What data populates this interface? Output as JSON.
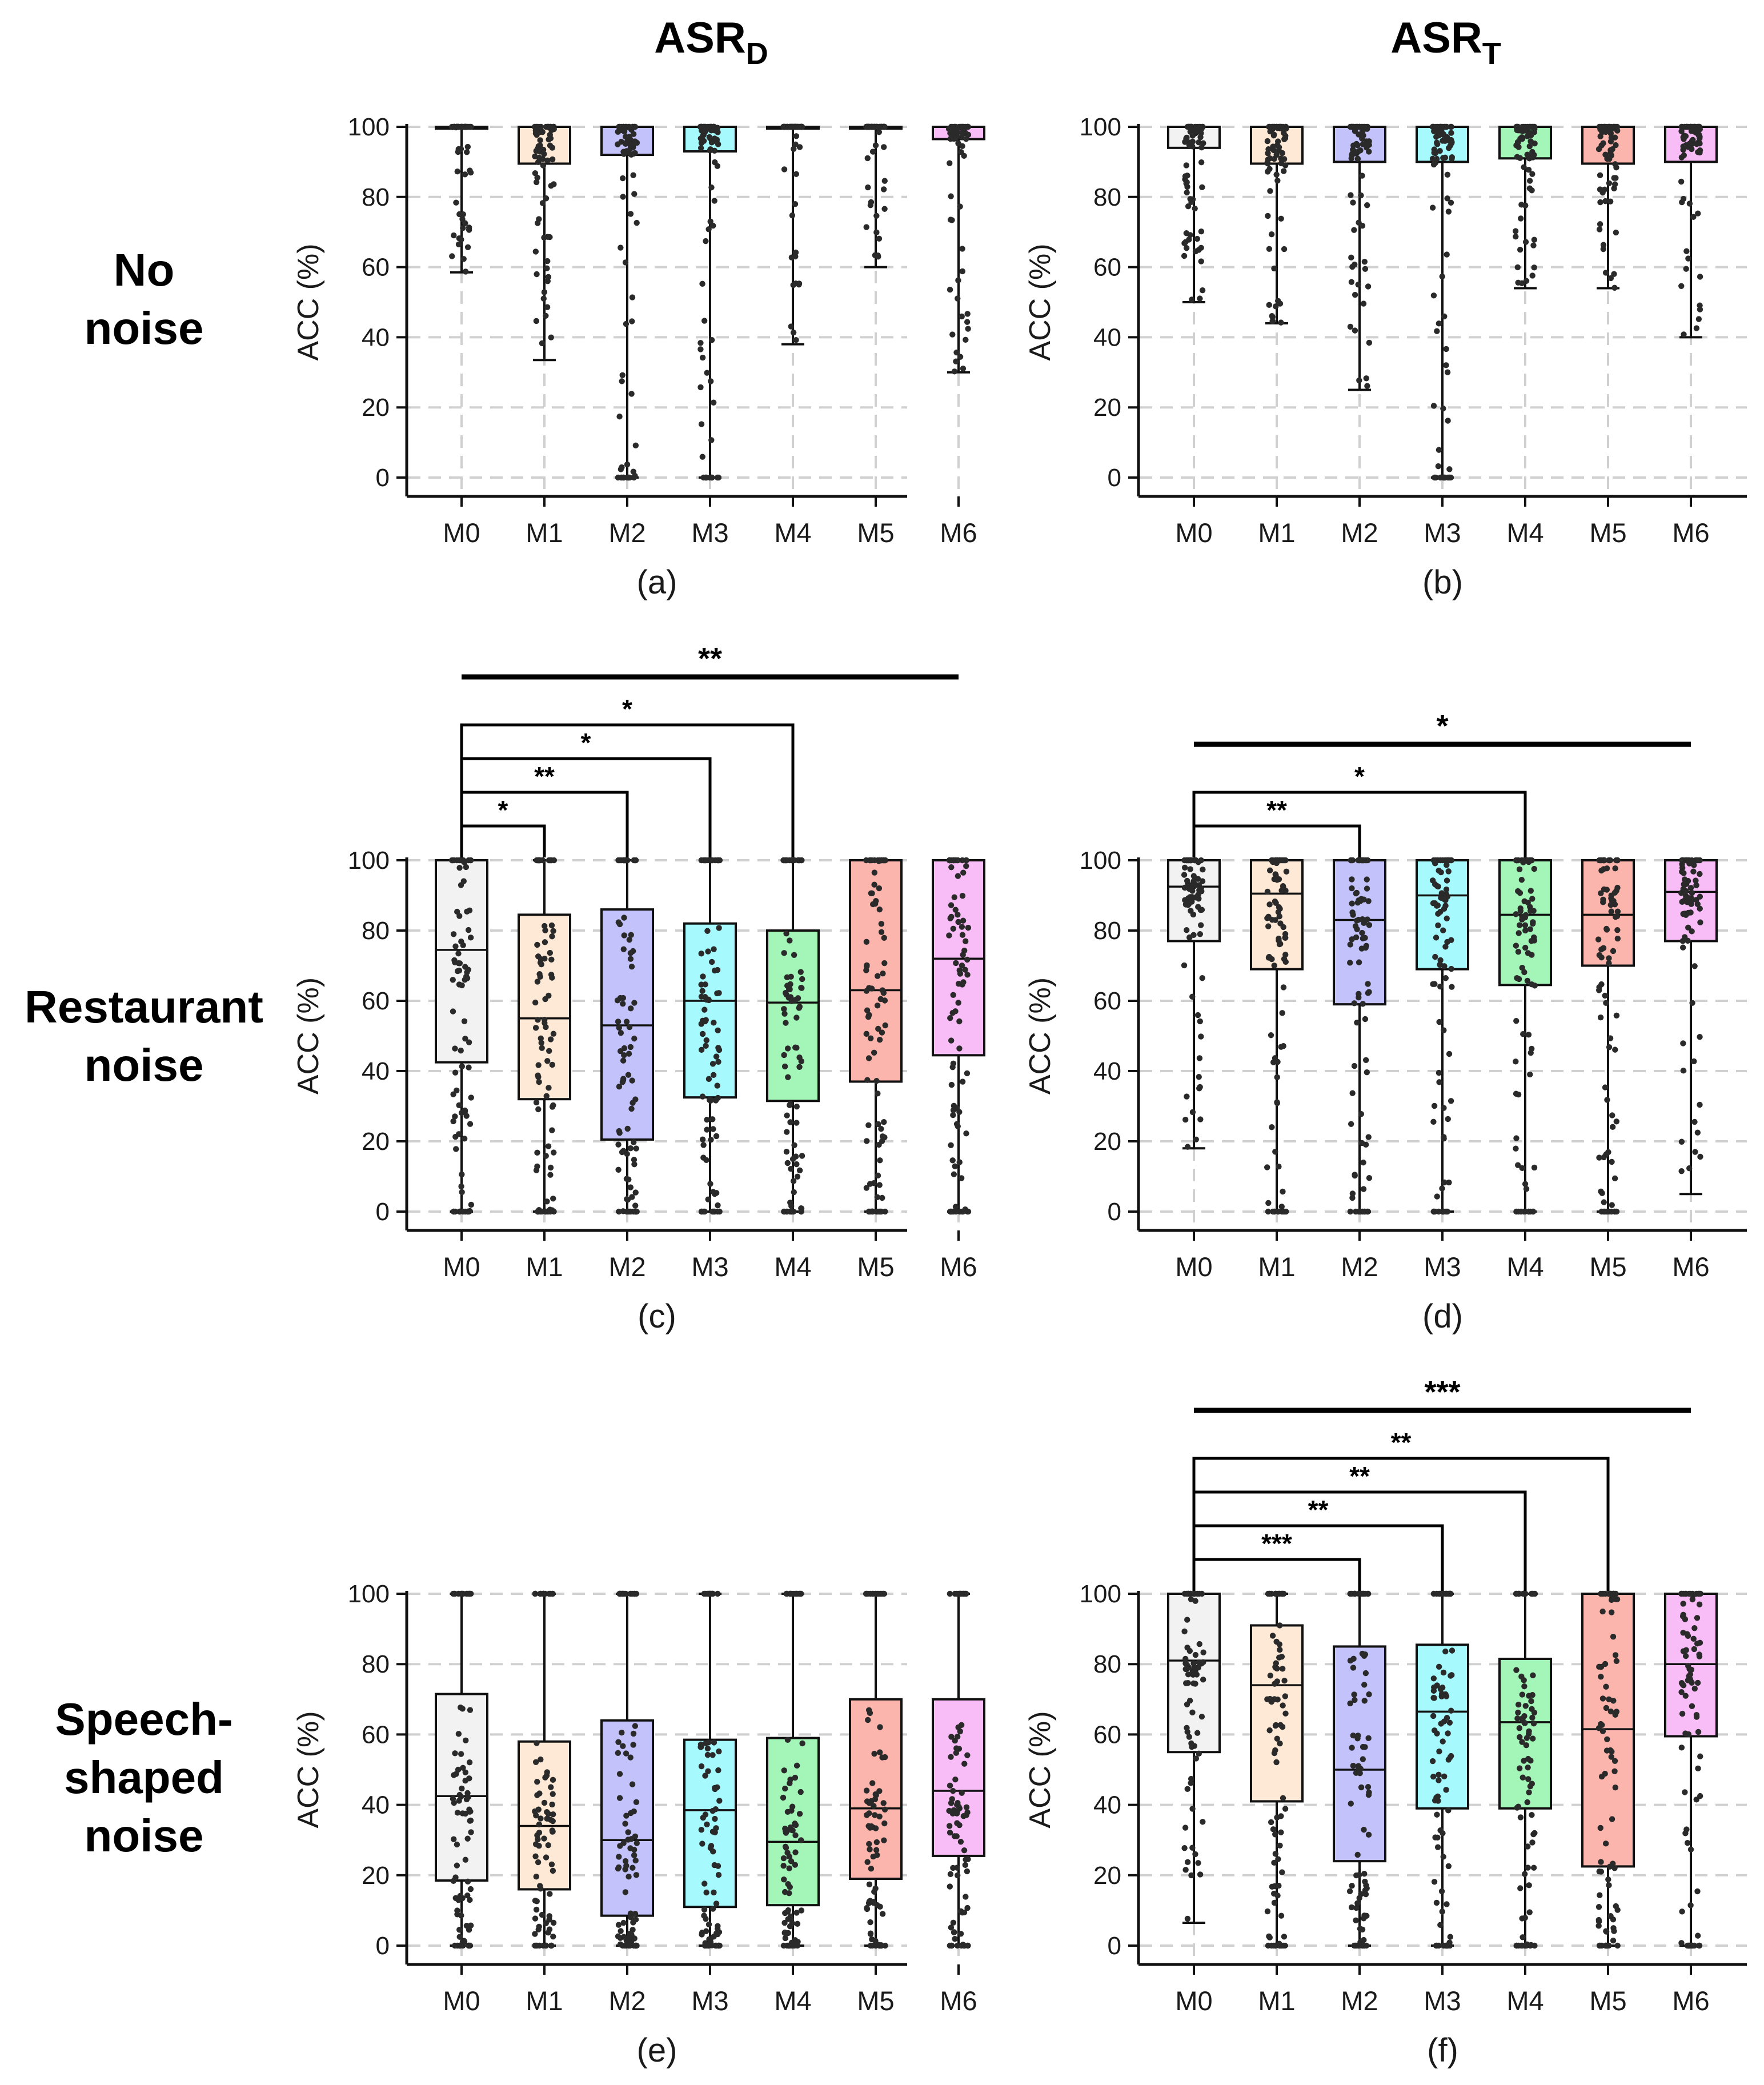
{
  "figure": {
    "columns": [
      {
        "main": "ASR",
        "sub": "D"
      },
      {
        "main": "ASR",
        "sub": "T"
      }
    ],
    "rows": [
      {
        "label_lines": [
          "No",
          "noise"
        ]
      },
      {
        "label_lines": [
          "Restaurant",
          "noise"
        ]
      },
      {
        "label_lines": [
          "Speech-",
          "shaped",
          "noise"
        ]
      }
    ],
    "colors": {
      "M0": "#f2f2f2",
      "M1": "#fde9d6",
      "M2": "#c3c2fa",
      "M3": "#a6fafd",
      "M4": "#a3f5b8",
      "M5": "#fbb5ad",
      "M6": "#f8bdf6",
      "points": "#2a2a2a",
      "axis": "#111111",
      "grid": "#d0d0d0"
    }
  },
  "chart_data": [
    {
      "type": "box",
      "panel_label": "(a)",
      "ylabel": "ACC (%)",
      "ylim": [
        0,
        100
      ],
      "yticks": [
        0,
        20,
        40,
        60,
        80,
        100
      ],
      "grid": true,
      "categories": [
        "M0",
        "M1",
        "M2",
        "M3",
        "M4",
        "M5",
        "M6"
      ],
      "boxes": [
        {
          "name": "M0",
          "min": 58.5,
          "q1": 100,
          "median": 100,
          "q3": 100,
          "max": 100
        },
        {
          "name": "M1",
          "min": 33.5,
          "q1": 89.5,
          "median": 100,
          "q3": 100,
          "max": 100
        },
        {
          "name": "M2",
          "min": 0,
          "q1": 92,
          "median": 100,
          "q3": 100,
          "max": 100
        },
        {
          "name": "M3",
          "min": 0,
          "q1": 93,
          "median": 100,
          "q3": 100,
          "max": 100
        },
        {
          "name": "M4",
          "min": 38,
          "q1": 100,
          "median": 100,
          "q3": 100,
          "max": 100
        },
        {
          "name": "M5",
          "min": 60,
          "q1": 100,
          "median": 100,
          "q3": 100,
          "max": 100
        },
        {
          "name": "M6",
          "min": 30,
          "q1": 96.5,
          "median": 100,
          "q3": 100,
          "max": 100
        }
      ],
      "significance": []
    },
    {
      "type": "box",
      "panel_label": "(b)",
      "ylabel": "ACC (%)",
      "ylim": [
        0,
        100
      ],
      "yticks": [
        0,
        20,
        40,
        60,
        80,
        100
      ],
      "grid": true,
      "categories": [
        "M0",
        "M1",
        "M2",
        "M3",
        "M4",
        "M5",
        "M6"
      ],
      "boxes": [
        {
          "name": "M0",
          "min": 50,
          "q1": 94,
          "median": 100,
          "q3": 100,
          "max": 100
        },
        {
          "name": "M1",
          "min": 44,
          "q1": 89.5,
          "median": 100,
          "q3": 100,
          "max": 100
        },
        {
          "name": "M2",
          "min": 25,
          "q1": 90,
          "median": 100,
          "q3": 100,
          "max": 100
        },
        {
          "name": "M3",
          "min": 0,
          "q1": 90,
          "median": 100,
          "q3": 100,
          "max": 100
        },
        {
          "name": "M4",
          "min": 54,
          "q1": 91,
          "median": 100,
          "q3": 100,
          "max": 100
        },
        {
          "name": "M5",
          "min": 54,
          "q1": 89.5,
          "median": 100,
          "q3": 100,
          "max": 100
        },
        {
          "name": "M6",
          "min": 40,
          "q1": 90,
          "median": 100,
          "q3": 100,
          "max": 100
        }
      ],
      "significance": []
    },
    {
      "type": "box",
      "panel_label": "(c)",
      "ylabel": "ACC (%)",
      "ylim": [
        0,
        100
      ],
      "yticks": [
        0,
        20,
        40,
        60,
        80,
        100
      ],
      "grid": true,
      "categories": [
        "M0",
        "M1",
        "M2",
        "M3",
        "M4",
        "M5",
        "M6"
      ],
      "boxes": [
        {
          "name": "M0",
          "min": 0,
          "q1": 42.5,
          "median": 74.5,
          "q3": 100,
          "max": 100
        },
        {
          "name": "M1",
          "min": 0,
          "q1": 32,
          "median": 55,
          "q3": 84.5,
          "max": 100
        },
        {
          "name": "M2",
          "min": 0,
          "q1": 20.5,
          "median": 53,
          "q3": 86,
          "max": 100
        },
        {
          "name": "M3",
          "min": 0,
          "q1": 32.5,
          "median": 60,
          "q3": 82,
          "max": 100
        },
        {
          "name": "M4",
          "min": 0,
          "q1": 31.5,
          "median": 59.5,
          "q3": 80,
          "max": 100
        },
        {
          "name": "M5",
          "min": 0,
          "q1": 37,
          "median": 63,
          "q3": 100,
          "max": 100
        },
        {
          "name": "M6",
          "min": 0,
          "q1": 44.5,
          "median": 72,
          "q3": 100,
          "max": 100
        }
      ],
      "significance": [
        {
          "from": "M0",
          "to": "M1",
          "label": "*"
        },
        {
          "from": "M0",
          "to": "M2",
          "label": "**"
        },
        {
          "from": "M0",
          "to": "M3",
          "label": "*"
        },
        {
          "from": "M0",
          "to": "M4",
          "label": "*"
        },
        {
          "from": "M0",
          "to": "M6",
          "label": "**",
          "overall": true
        }
      ]
    },
    {
      "type": "box",
      "panel_label": "(d)",
      "ylabel": "ACC (%)",
      "ylim": [
        0,
        100
      ],
      "yticks": [
        0,
        20,
        40,
        60,
        80,
        100
      ],
      "grid": true,
      "categories": [
        "M0",
        "M1",
        "M2",
        "M3",
        "M4",
        "M5",
        "M6"
      ],
      "boxes": [
        {
          "name": "M0",
          "min": 18,
          "q1": 77,
          "median": 92.5,
          "q3": 100,
          "max": 100
        },
        {
          "name": "M1",
          "min": 0,
          "q1": 69,
          "median": 90.5,
          "q3": 100,
          "max": 100
        },
        {
          "name": "M2",
          "min": 0,
          "q1": 59,
          "median": 83,
          "q3": 100,
          "max": 100
        },
        {
          "name": "M3",
          "min": 0,
          "q1": 69,
          "median": 90,
          "q3": 100,
          "max": 100
        },
        {
          "name": "M4",
          "min": 0,
          "q1": 64.5,
          "median": 84.5,
          "q3": 100,
          "max": 100
        },
        {
          "name": "M5",
          "min": 0,
          "q1": 70,
          "median": 84.5,
          "q3": 100,
          "max": 100
        },
        {
          "name": "M6",
          "min": 5,
          "q1": 77,
          "median": 91,
          "q3": 100,
          "max": 100
        }
      ],
      "significance": [
        {
          "from": "M0",
          "to": "M2",
          "label": "**"
        },
        {
          "from": "M0",
          "to": "M4",
          "label": "*"
        },
        {
          "from": "M0",
          "to": "M6",
          "label": "*",
          "overall": true
        }
      ]
    },
    {
      "type": "box",
      "panel_label": "(e)",
      "ylabel": "ACC (%)",
      "ylim": [
        0,
        100
      ],
      "yticks": [
        0,
        20,
        40,
        60,
        80,
        100
      ],
      "grid": true,
      "categories": [
        "M0",
        "M1",
        "M2",
        "M3",
        "M4",
        "M5",
        "M6"
      ],
      "boxes": [
        {
          "name": "M0",
          "min": 0,
          "q1": 18.5,
          "median": 42.5,
          "q3": 71.5,
          "max": 100
        },
        {
          "name": "M1",
          "min": 0,
          "q1": 16,
          "median": 34,
          "q3": 58,
          "max": 100
        },
        {
          "name": "M2",
          "min": 0,
          "q1": 8.5,
          "median": 30,
          "q3": 64,
          "max": 100
        },
        {
          "name": "M3",
          "min": 0,
          "q1": 11,
          "median": 38.5,
          "q3": 58.5,
          "max": 100
        },
        {
          "name": "M4",
          "min": 0,
          "q1": 11.5,
          "median": 29.5,
          "q3": 59,
          "max": 100
        },
        {
          "name": "M5",
          "min": 0,
          "q1": 19,
          "median": 39,
          "q3": 70,
          "max": 100
        },
        {
          "name": "M6",
          "min": 0,
          "q1": 25.5,
          "median": 44,
          "q3": 70,
          "max": 100
        }
      ],
      "significance": []
    },
    {
      "type": "box",
      "panel_label": "(f)",
      "ylabel": "ACC (%)",
      "ylim": [
        0,
        100
      ],
      "yticks": [
        0,
        20,
        40,
        60,
        80,
        100
      ],
      "grid": true,
      "categories": [
        "M0",
        "M1",
        "M2",
        "M3",
        "M4",
        "M5",
        "M6"
      ],
      "boxes": [
        {
          "name": "M0",
          "min": 6.5,
          "q1": 55,
          "median": 81,
          "q3": 100,
          "max": 100
        },
        {
          "name": "M1",
          "min": 0,
          "q1": 41,
          "median": 74,
          "q3": 91,
          "max": 100
        },
        {
          "name": "M2",
          "min": 0,
          "q1": 24,
          "median": 50,
          "q3": 85,
          "max": 100
        },
        {
          "name": "M3",
          "min": 0,
          "q1": 39,
          "median": 66.5,
          "q3": 85.5,
          "max": 100
        },
        {
          "name": "M4",
          "min": 0,
          "q1": 39,
          "median": 63.5,
          "q3": 81.5,
          "max": 100
        },
        {
          "name": "M5",
          "min": 0,
          "q1": 22.5,
          "median": 61.5,
          "q3": 100,
          "max": 100
        },
        {
          "name": "M6",
          "min": 0,
          "q1": 59.5,
          "median": 80,
          "q3": 100,
          "max": 100
        }
      ],
      "significance": [
        {
          "from": "M0",
          "to": "M2",
          "label": "***"
        },
        {
          "from": "M0",
          "to": "M3",
          "label": "**"
        },
        {
          "from": "M0",
          "to": "M4",
          "label": "**"
        },
        {
          "from": "M0",
          "to": "M5",
          "label": "**"
        },
        {
          "from": "M0",
          "to": "M6",
          "label": "***",
          "overall": true
        }
      ]
    }
  ]
}
